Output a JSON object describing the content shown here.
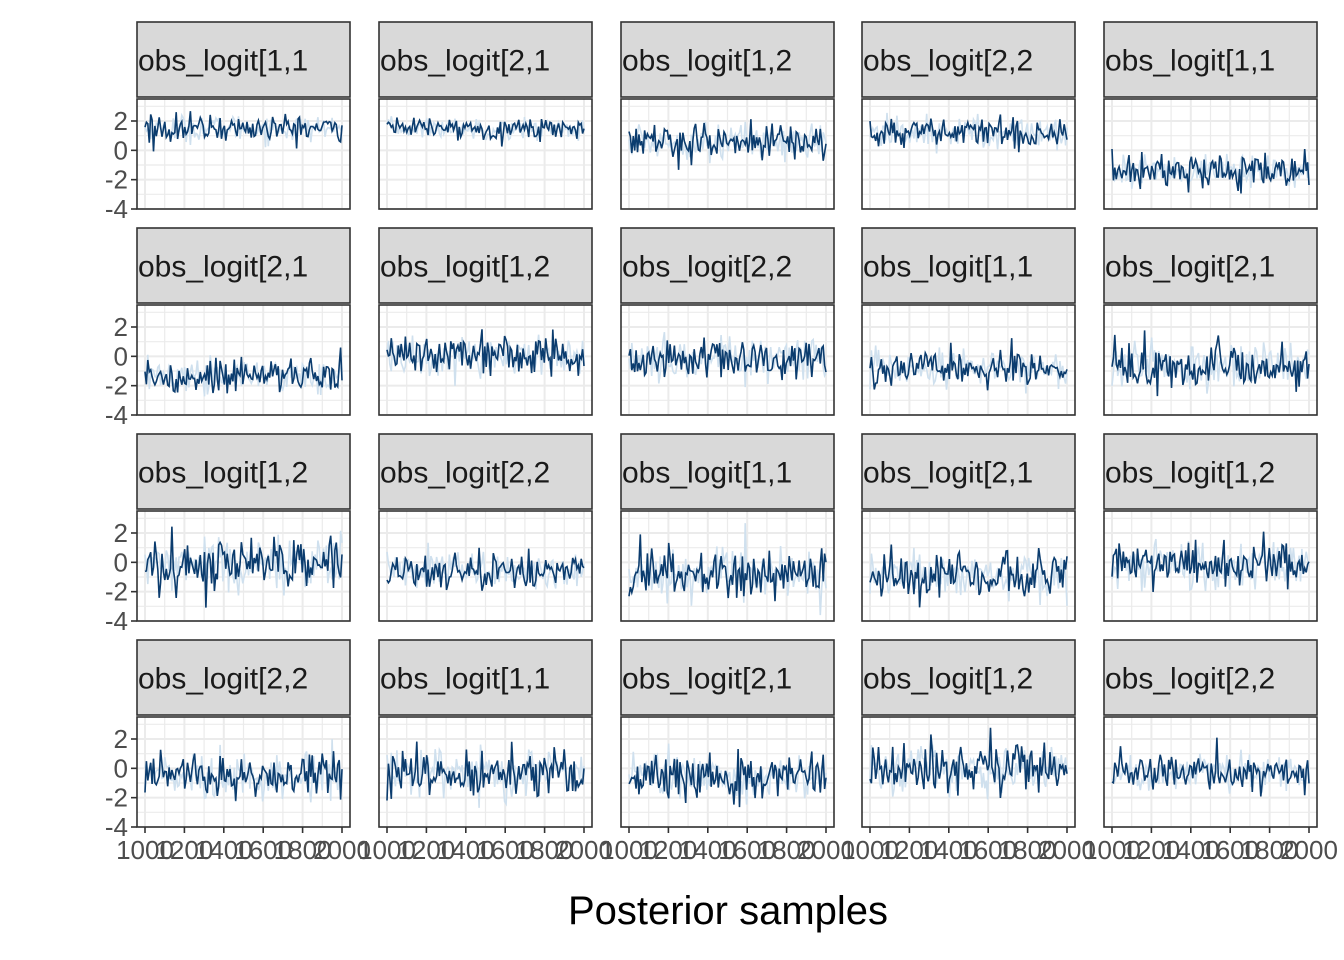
{
  "chart_data": {
    "type": "line",
    "xlabel": "Posterior samples",
    "ylabel": "",
    "xlim": [
      1000,
      2000
    ],
    "ylim": [
      -4,
      3.5
    ],
    "x_ticks": [
      1000,
      1200,
      1400,
      1600,
      1800,
      2000
    ],
    "x_tick_labels": [
      "1000",
      "1200",
      "1400",
      "1600",
      "1800",
      "2000"
    ],
    "y_ticks": [
      2,
      0,
      -2,
      -4
    ],
    "y_tick_labels": [
      "2",
      "0",
      "-2",
      "-4"
    ],
    "grid": true,
    "legend": "none",
    "colors": {
      "chain_dark": "#0b3c6e",
      "chain_light": "#cfe0ee",
      "strip_fill": "#d9d9d9",
      "panel_border": "#333333",
      "grid": "#ebebeb"
    },
    "panels": [
      {
        "label": "obs_logit[1,1",
        "center": 1.5,
        "spread": 0.45
      },
      {
        "label": "obs_logit[2,1",
        "center": 1.5,
        "spread": 0.35
      },
      {
        "label": "obs_logit[1,2",
        "center": 0.6,
        "spread": 0.6
      },
      {
        "label": "obs_logit[2,2",
        "center": 1.2,
        "spread": 0.55
      },
      {
        "label": "obs_logit[1,1",
        "center": -1.4,
        "spread": 0.55
      },
      {
        "label": "obs_logit[2,1",
        "center": -1.3,
        "spread": 0.6
      },
      {
        "label": "obs_logit[1,2",
        "center": 0.1,
        "spread": 0.75
      },
      {
        "label": "obs_logit[2,2",
        "center": -0.2,
        "spread": 0.75
      },
      {
        "label": "obs_logit[1,1",
        "center": -0.8,
        "spread": 0.6
      },
      {
        "label": "obs_logit[2,1",
        "center": -0.6,
        "spread": 0.75
      },
      {
        "label": "obs_logit[1,2",
        "center": -0.2,
        "spread": 0.9
      },
      {
        "label": "obs_logit[2,2",
        "center": -0.6,
        "spread": 0.65
      },
      {
        "label": "obs_logit[1,1",
        "center": -0.8,
        "spread": 0.8
      },
      {
        "label": "obs_logit[2,1",
        "center": -0.9,
        "spread": 0.8
      },
      {
        "label": "obs_logit[1,2",
        "center": -0.2,
        "spread": 0.75
      },
      {
        "label": "obs_logit[2,2",
        "center": -0.5,
        "spread": 0.75
      },
      {
        "label": "obs_logit[1,1",
        "center": -0.3,
        "spread": 0.8
      },
      {
        "label": "obs_logit[2,1",
        "center": -0.6,
        "spread": 0.75
      },
      {
        "label": "obs_logit[1,2",
        "center": 0.1,
        "spread": 0.9
      },
      {
        "label": "obs_logit[2,2",
        "center": -0.2,
        "spread": 0.65
      }
    ]
  }
}
